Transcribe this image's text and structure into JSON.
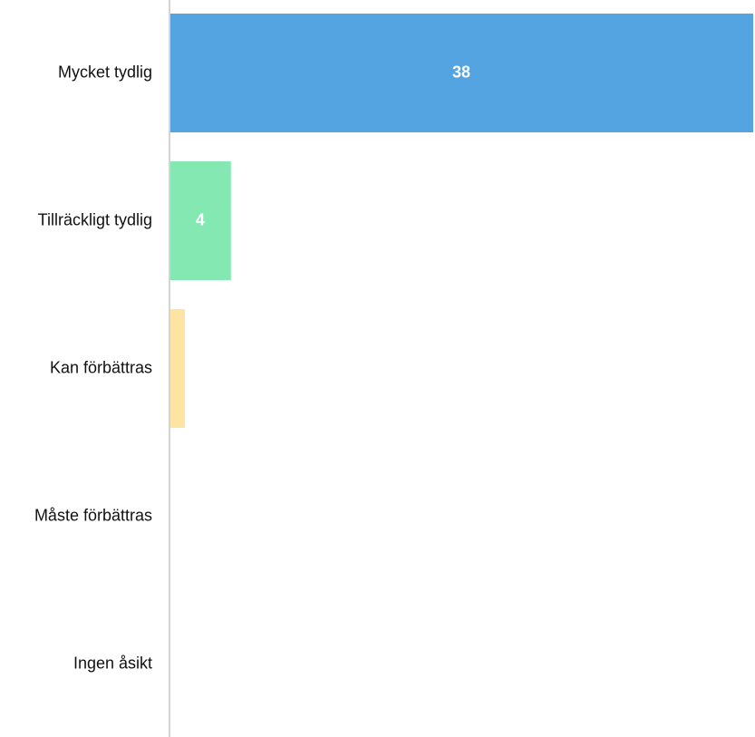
{
  "chart_data": {
    "type": "bar",
    "orientation": "horizontal",
    "categories": [
      "Mycket tydlig",
      "Tillräckligt tydlig",
      "Kan förbättras",
      "Måste förbättras",
      "Ingen åsikt"
    ],
    "values": [
      38,
      4,
      1,
      0,
      0
    ],
    "value_labels": [
      "38",
      "4",
      "",
      "",
      ""
    ],
    "colors": [
      "#55a4e2",
      "#84e8b3",
      "#fde4a2",
      "#f3a6a6",
      "#cccccc"
    ],
    "axis_color": "#d4d4d4",
    "xlim": [
      0,
      38
    ],
    "grid": false,
    "title": "",
    "xlabel": "",
    "ylabel": ""
  }
}
